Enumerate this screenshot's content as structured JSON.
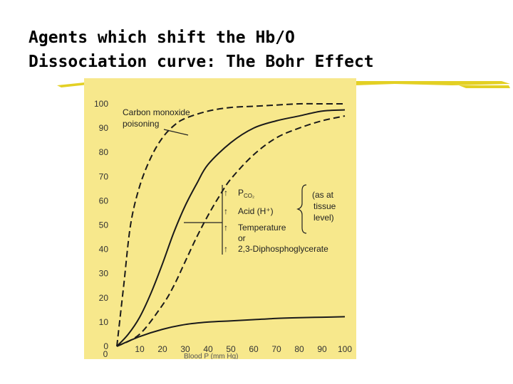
{
  "slide": {
    "title_line1": "Agents which shift the Hb/O",
    "title_line2": "Dissociation curve: The Bohr Effect",
    "rule_color": "#e3d024"
  },
  "chart_data": {
    "type": "line",
    "title": "",
    "xlabel": "Blood P (mm Hg)",
    "ylabel": "",
    "xlim": [
      0,
      100
    ],
    "ylim": [
      0,
      100
    ],
    "x_ticks": [
      10,
      20,
      30,
      40,
      50,
      60,
      70,
      80,
      90,
      100
    ],
    "x_zero_label": "0",
    "y_ticks": [
      10,
      20,
      30,
      40,
      50,
      60,
      70,
      80,
      90,
      100
    ],
    "y_zero_label": "0",
    "background_color": "#f7e88c",
    "curve_color": "#1a1a1a",
    "series": [
      {
        "style": "dashed",
        "x": [
          0,
          3,
          6,
          10,
          15,
          20,
          25,
          30,
          40,
          50,
          60,
          70,
          80,
          90,
          100
        ],
        "y": [
          0,
          25,
          50,
          66,
          78,
          86,
          91,
          94,
          97,
          98.5,
          99,
          99.5,
          100,
          100,
          100
        ]
      },
      {
        "style": "solid",
        "x": [
          0,
          5,
          10,
          15,
          20,
          25,
          30,
          35,
          40,
          50,
          60,
          70,
          80,
          90,
          100
        ],
        "y": [
          0,
          5,
          12,
          22,
          34,
          47,
          58,
          67,
          75,
          84,
          90,
          93,
          95,
          97,
          97.5
        ]
      },
      {
        "style": "dashed",
        "x": [
          0,
          10,
          20,
          25,
          30,
          35,
          40,
          45,
          50,
          60,
          70,
          80,
          90,
          100
        ],
        "y": [
          0,
          5,
          17,
          25,
          35,
          45,
          54,
          62,
          69,
          79,
          86,
          90,
          93,
          95
        ]
      },
      {
        "style": "solid",
        "x": [
          0,
          10,
          20,
          30,
          40,
          50,
          60,
          70,
          80,
          90,
          100
        ],
        "y": [
          0,
          4,
          7,
          9,
          10,
          10.5,
          11,
          11.5,
          11.8,
          12,
          12.2
        ]
      }
    ],
    "annotations": {
      "carbon_monoxide_line1": "Carbon monoxide",
      "carbon_monoxide_line2": "poisoning",
      "agent_pco2": "P",
      "agent_pco2_sub": "CO₂",
      "agent_acid": "Acid (H⁺)",
      "agent_temperature": "Temperature",
      "agent_or": "or",
      "agent_dpg": "2,3-Diphosphoglycerate",
      "arrow_symbol": "↑",
      "tissue_line1": "(as at",
      "tissue_line2": "tissue",
      "tissue_line3": "level)"
    }
  }
}
